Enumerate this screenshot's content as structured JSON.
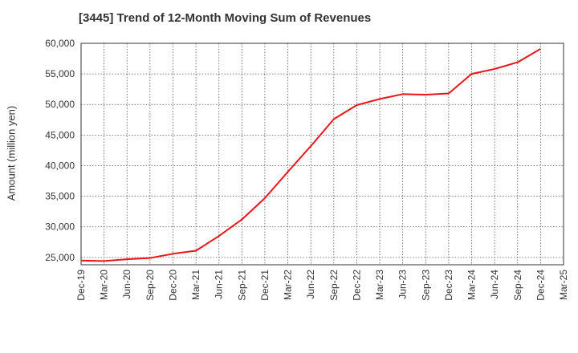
{
  "chart_data": {
    "type": "line",
    "title": "[3445]  Trend of 12-Month Moving Sum of Revenues",
    "xlabel": "",
    "ylabel": "Amount (million yen)",
    "ylim": [
      23800,
      60000
    ],
    "yticks": [
      25000,
      30000,
      35000,
      40000,
      45000,
      50000,
      55000,
      60000
    ],
    "ytick_labels": [
      "25,000",
      "30,000",
      "35,000",
      "40,000",
      "45,000",
      "50,000",
      "55,000",
      "60,000"
    ],
    "categories": [
      "Dec-19",
      "Mar-20",
      "Jun-20",
      "Sep-20",
      "Dec-20",
      "Mar-21",
      "Jun-21",
      "Sep-21",
      "Dec-21",
      "Mar-22",
      "Jun-22",
      "Sep-22",
      "Dec-22",
      "Mar-23",
      "Jun-23",
      "Sep-23",
      "Dec-23",
      "Mar-24",
      "Jun-24",
      "Sep-24",
      "Dec-24",
      "Mar-25"
    ],
    "grid": true,
    "series": [
      {
        "color": "#e8161b",
        "values": [
          24500,
          24400,
          24700,
          24900,
          25600,
          26100,
          28500,
          31200,
          34700,
          39000,
          43200,
          47600,
          49900,
          50900,
          51700,
          51600,
          51800,
          55000,
          55800,
          56900,
          59100,
          null
        ]
      }
    ]
  }
}
